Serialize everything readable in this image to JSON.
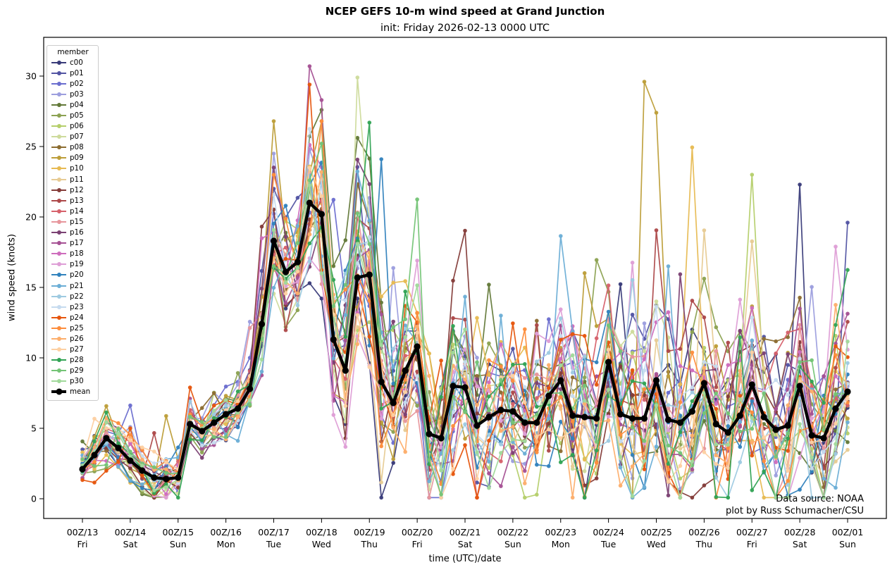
{
  "chart_data": {
    "type": "line",
    "title": "NCEP GEFS 10-m wind speed at Grand Junction",
    "subtitle": "init: Friday 2026-02-13 0000 UTC",
    "xlabel": "time (UTC)/date",
    "ylabel": "wind speed (knots)",
    "legend_title": "member",
    "attribution_line1": "Data source: NOAA",
    "attribution_line2": "plot by Russ Schumacher/CSU",
    "x_start": "2026-02-13 0000 UTC",
    "x_step_hours": 6,
    "n_points": 65,
    "steps_per_day": 4,
    "grid": false,
    "legend_position": "upper left",
    "ylim": [
      -1.4,
      32.8
    ],
    "yticks": [
      0,
      5,
      10,
      15,
      20,
      25,
      30
    ],
    "x_tick_labels": [
      {
        "utc": "00Z/13",
        "day": "Fri"
      },
      {
        "utc": "00Z/14",
        "day": "Sat"
      },
      {
        "utc": "00Z/15",
        "day": "Sun"
      },
      {
        "utc": "00Z/16",
        "day": "Mon"
      },
      {
        "utc": "00Z/17",
        "day": "Tue"
      },
      {
        "utc": "00Z/18",
        "day": "Wed"
      },
      {
        "utc": "00Z/19",
        "day": "Thu"
      },
      {
        "utc": "00Z/20",
        "day": "Fri"
      },
      {
        "utc": "00Z/21",
        "day": "Sat"
      },
      {
        "utc": "00Z/22",
        "day": "Sun"
      },
      {
        "utc": "00Z/23",
        "day": "Mon"
      },
      {
        "utc": "00Z/24",
        "day": "Tue"
      },
      {
        "utc": "00Z/25",
        "day": "Wed"
      },
      {
        "utc": "00Z/26",
        "day": "Thu"
      },
      {
        "utc": "00Z/27",
        "day": "Fri"
      },
      {
        "utc": "00Z/28",
        "day": "Sat"
      },
      {
        "utc": "00Z/01",
        "day": "Sun"
      }
    ],
    "mean": {
      "name": "mean",
      "color": "#000000",
      "values": [
        2.1,
        3.1,
        4.3,
        3.6,
        2.7,
        2.0,
        1.5,
        1.4,
        1.5,
        5.3,
        4.8,
        5.4,
        6.0,
        6.4,
        7.8,
        12.4,
        18.3,
        16.1,
        16.8,
        21.0,
        20.2,
        11.3,
        9.1,
        15.7,
        15.9,
        8.3,
        6.8,
        9.1,
        10.8,
        4.6,
        4.3,
        8.0,
        7.9,
        5.2,
        5.8,
        6.3,
        6.2,
        5.4,
        5.4,
        7.3,
        8.4,
        5.9,
        5.8,
        5.7,
        9.7,
        6.0,
        5.7,
        5.7,
        8.4,
        5.6,
        5.4,
        6.2,
        8.2,
        5.3,
        4.7,
        5.9,
        8.1,
        5.8,
        4.9,
        5.2,
        8.0,
        4.5,
        4.3,
        6.4,
        7.6
      ]
    },
    "ensemble_spread_halfwidth": [
      1.6,
      1.6,
      1.6,
      1.6,
      1.6,
      1.6,
      1.6,
      1.6,
      1.5,
      1.5,
      1.5,
      1.5,
      1.6,
      1.6,
      1.8,
      3.0,
      4.5,
      4.5,
      4.5,
      5.5,
      6.5,
      6.5,
      6.5,
      6.5,
      6.5,
      6.5,
      6.5,
      6.5,
      5.5,
      5.5,
      5.5,
      5.5,
      5.0,
      5.0,
      5.0,
      5.0,
      4.5,
      4.5,
      4.5,
      4.5,
      5.5,
      5.5,
      5.5,
      5.5,
      5.5,
      5.5,
      5.5,
      5.5,
      6.0,
      6.0,
      6.0,
      6.0,
      5.5,
      5.5,
      5.5,
      5.5,
      5.5,
      5.5,
      5.5,
      5.5,
      5.5,
      5.5,
      5.5,
      5.5,
      5.5
    ],
    "notable_extremes": [
      {
        "member": "p03",
        "t": 16,
        "value": 24.5
      },
      {
        "member": "p17",
        "t": 19,
        "value": 30.7
      },
      {
        "member": "p17",
        "t": 20,
        "value": 28.3
      },
      {
        "member": "p24",
        "t": 19,
        "value": 29.4
      },
      {
        "member": "p04",
        "t": 20,
        "value": 27.6
      },
      {
        "member": "p07",
        "t": 23,
        "value": 29.9
      },
      {
        "member": "p28",
        "t": 24,
        "value": 26.7
      },
      {
        "member": "p20",
        "t": 25,
        "value": 24.1
      },
      {
        "member": "p09",
        "t": 47,
        "value": 29.6
      },
      {
        "member": "p09",
        "t": 48,
        "value": 27.4
      },
      {
        "member": "p06",
        "t": 56,
        "value": 23.0
      },
      {
        "member": "c00",
        "t": 60,
        "value": 22.3
      },
      {
        "member": "p01",
        "t": 64,
        "value": 19.6
      }
    ],
    "members": [
      {
        "name": "c00",
        "color": "#393b79"
      },
      {
        "name": "p01",
        "color": "#5254a3"
      },
      {
        "name": "p02",
        "color": "#6b6ecf"
      },
      {
        "name": "p03",
        "color": "#9c9ede"
      },
      {
        "name": "p04",
        "color": "#637939"
      },
      {
        "name": "p05",
        "color": "#8ca252"
      },
      {
        "name": "p06",
        "color": "#b5cf6b"
      },
      {
        "name": "p07",
        "color": "#cedb9c"
      },
      {
        "name": "p08",
        "color": "#8c6d31"
      },
      {
        "name": "p09",
        "color": "#bd9e39"
      },
      {
        "name": "p10",
        "color": "#e7ba52"
      },
      {
        "name": "p11",
        "color": "#e7cb94"
      },
      {
        "name": "p12",
        "color": "#843c39"
      },
      {
        "name": "p13",
        "color": "#ad494a"
      },
      {
        "name": "p14",
        "color": "#d6616b"
      },
      {
        "name": "p15",
        "color": "#e7969c"
      },
      {
        "name": "p16",
        "color": "#7b4173"
      },
      {
        "name": "p17",
        "color": "#a55194"
      },
      {
        "name": "p18",
        "color": "#ce6dbd"
      },
      {
        "name": "p19",
        "color": "#de9ed6"
      },
      {
        "name": "p20",
        "color": "#3182bd"
      },
      {
        "name": "p21",
        "color": "#6baed6"
      },
      {
        "name": "p22",
        "color": "#9ecae1"
      },
      {
        "name": "p23",
        "color": "#c6dbef"
      },
      {
        "name": "p24",
        "color": "#e6550d"
      },
      {
        "name": "p25",
        "color": "#fd8d3c"
      },
      {
        "name": "p26",
        "color": "#fdae6b"
      },
      {
        "name": "p27",
        "color": "#fdd0a2"
      },
      {
        "name": "p28",
        "color": "#31a354"
      },
      {
        "name": "p29",
        "color": "#74c476"
      },
      {
        "name": "p30",
        "color": "#a1d99b"
      }
    ]
  }
}
